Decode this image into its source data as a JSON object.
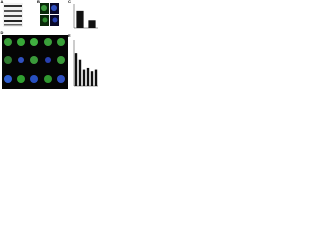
{
  "panel_labels": [
    "A",
    "B",
    "C",
    "D",
    "E"
  ],
  "charts": [
    {
      "type": "bar",
      "values": [
        1.0,
        0.45
      ],
      "color": "#111111",
      "ylim": [
        0,
        1.4
      ]
    },
    {
      "type": "bar",
      "values": [
        1.0,
        0.8,
        0.5,
        0.55,
        0.45,
        0.5
      ],
      "color": "#111111",
      "ylim": [
        0,
        1.4
      ]
    }
  ]
}
